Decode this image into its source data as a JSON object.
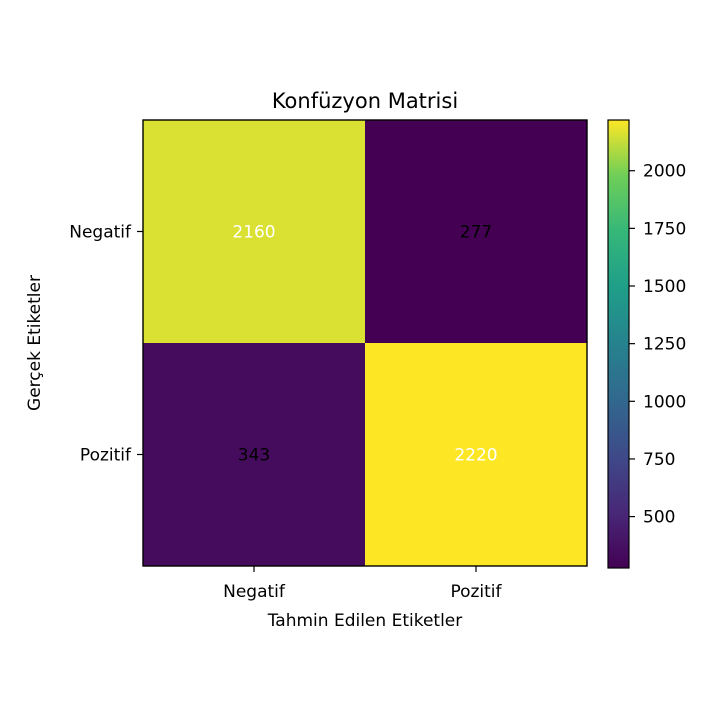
{
  "chart_data": {
    "type": "heatmap",
    "title": "Konfüzyon Matrisi",
    "xlabel": "Tahmin Edilen Etiketler",
    "ylabel": "Gerçek Etiketler",
    "x_categories": [
      "Negatif",
      "Pozitif"
    ],
    "y_categories": [
      "Negatif",
      "Pozitif"
    ],
    "values": [
      [
        2160,
        277
      ],
      [
        343,
        2220
      ]
    ],
    "colormap": "viridis",
    "color_range": [
      277,
      2220
    ],
    "colorbar_ticks": [
      500,
      750,
      1000,
      1250,
      1500,
      1750,
      2000
    ]
  }
}
